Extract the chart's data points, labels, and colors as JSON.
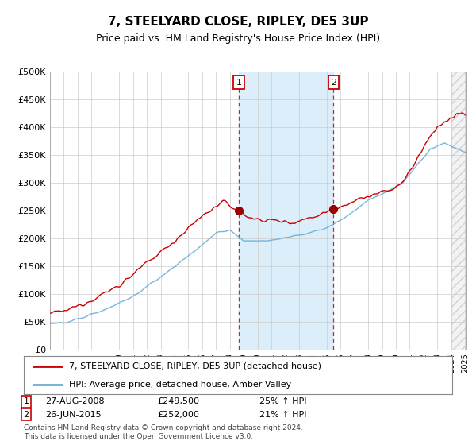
{
  "title": "7, STEELYARD CLOSE, RIPLEY, DE5 3UP",
  "subtitle": "Price paid vs. HM Land Registry's House Price Index (HPI)",
  "ytick_vals": [
    0,
    50000,
    100000,
    150000,
    200000,
    250000,
    300000,
    350000,
    400000,
    450000,
    500000
  ],
  "ylim": [
    0,
    500000
  ],
  "sale1": {
    "date": "27-AUG-2008",
    "price": 249500,
    "label": "1",
    "pct": "25%",
    "year": 2008.65
  },
  "sale2": {
    "date": "26-JUN-2015",
    "price": 252000,
    "label": "2",
    "pct": "21%",
    "year": 2015.48
  },
  "legend_line1": "7, STEELYARD CLOSE, RIPLEY, DE5 3UP (detached house)",
  "legend_line2": "HPI: Average price, detached house, Amber Valley",
  "footer1": "Contains HM Land Registry data © Crown copyright and database right 2024.",
  "footer2": "This data is licensed under the Open Government Licence v3.0.",
  "line_color_red": "#cc0000",
  "line_color_blue": "#6aaed6",
  "shade_color": "#dceefa",
  "bg_color": "#ffffff",
  "grid_color": "#cccccc"
}
